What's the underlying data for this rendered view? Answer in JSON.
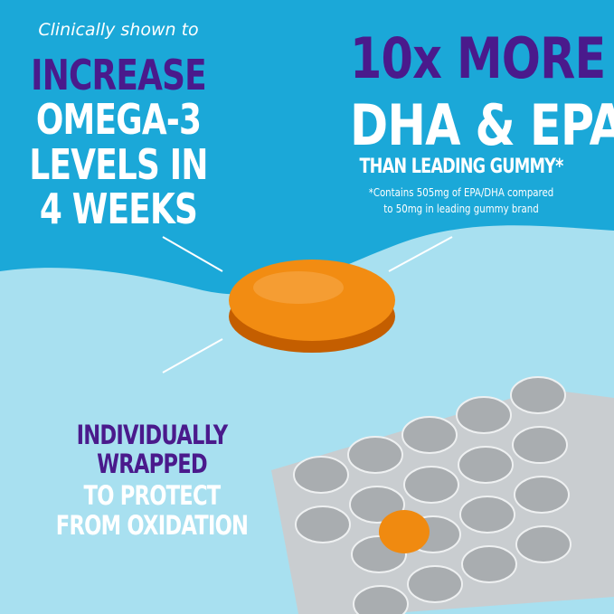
{
  "left_claim": {
    "intro": "Clinically shown to",
    "line1": "INCREASE",
    "line2": "OMEGA-3",
    "line3": "LEVELS IN",
    "line4": "4 WEEKS"
  },
  "right_claim": {
    "line1": "10x MORE",
    "line2": "DHA & EPA",
    "line3": "THAN LEADING GUMMY*",
    "footnote_line1": "*Contains 505mg of EPA/DHA compared",
    "footnote_line2": "to 50mg in leading gummy brand"
  },
  "bottom_claim": {
    "line1": "INDIVIDUALLY",
    "line2": "WRAPPED",
    "line3": "TO PROTECT",
    "line4": "FROM OXIDATION"
  },
  "colors": {
    "top_blue": "#1ba8d8",
    "bottom_blue": "#a8e0f0",
    "purple": "#4a1a8c",
    "gummy_orange": "#f08a10",
    "foil": "#bfc3c6"
  }
}
